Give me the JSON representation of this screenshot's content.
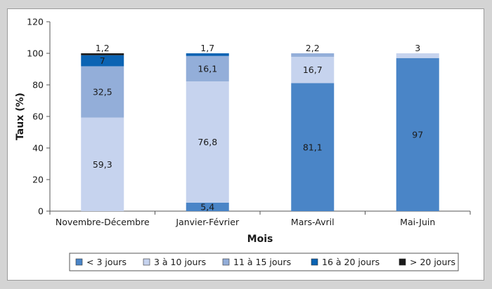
{
  "chart_data": {
    "type": "bar",
    "stacked": true,
    "categories": [
      "Novembre-Décembre",
      "Janvier-Février",
      "Mars-Avril",
      "Mai-Juin"
    ],
    "series": [
      {
        "name": "< 3 jours",
        "color": "#4a85c7",
        "values": [
          0,
          5.4,
          81.1,
          97
        ]
      },
      {
        "name": "3 à 10 jours",
        "color": "#c6d3ee",
        "values": [
          59.3,
          76.8,
          16.7,
          3
        ]
      },
      {
        "name": "11 à 15 jours",
        "color": "#93aed9",
        "values": [
          32.5,
          16.1,
          2.2,
          0
        ]
      },
      {
        "name": "16 à 20 jours",
        "color": "#0b63b3",
        "values": [
          7,
          1.7,
          0,
          0
        ]
      },
      {
        "name": "> 20 jours",
        "color": "#1a1a1a",
        "values": [
          1.2,
          0,
          0,
          0
        ]
      }
    ],
    "data_labels": [
      {
        "category": 0,
        "series": 1,
        "text": "59,3"
      },
      {
        "category": 0,
        "series": 2,
        "text": "32,5"
      },
      {
        "category": 0,
        "series": 3,
        "text": "7"
      },
      {
        "category": 0,
        "series": 4,
        "text": "1,2",
        "position": "above"
      },
      {
        "category": 1,
        "series": 0,
        "text": "5,4"
      },
      {
        "category": 1,
        "series": 1,
        "text": "76,8"
      },
      {
        "category": 1,
        "series": 2,
        "text": "16,1"
      },
      {
        "category": 1,
        "series": 3,
        "text": "1,7",
        "position": "above"
      },
      {
        "category": 2,
        "series": 0,
        "text": "81,1"
      },
      {
        "category": 2,
        "series": 1,
        "text": "16,7"
      },
      {
        "category": 2,
        "series": 2,
        "text": "2,2",
        "position": "above"
      },
      {
        "category": 3,
        "series": 0,
        "text": "97"
      },
      {
        "category": 3,
        "series": 1,
        "text": "3",
        "position": "above"
      }
    ],
    "xlabel": "Mois",
    "ylabel": "Taux (%)",
    "ylim": [
      0,
      120
    ],
    "yticks": [
      0,
      20,
      40,
      60,
      80,
      100,
      120
    ],
    "grid": false,
    "legend_position": "bottom"
  }
}
